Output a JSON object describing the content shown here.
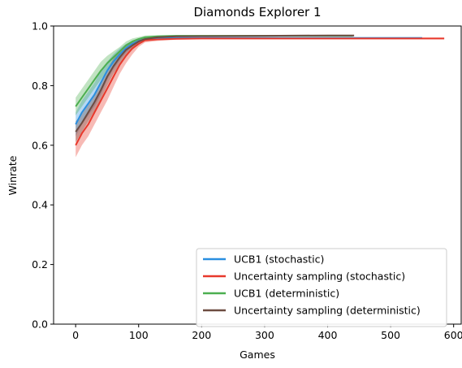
{
  "chart_data": {
    "type": "line",
    "title": "Diamonds Explorer 1",
    "xlabel": "Games",
    "ylabel": "Winrate",
    "xlim": [
      -35,
      612
    ],
    "ylim": [
      0.0,
      1.0
    ],
    "xticks": [
      "0",
      "100",
      "200",
      "300",
      "400",
      "500",
      "600"
    ],
    "xtick_values": [
      0,
      100,
      200,
      300,
      400,
      500,
      600
    ],
    "yticks": [
      "0.0",
      "0.2",
      "0.4",
      "0.6",
      "0.8",
      "1.0"
    ],
    "ytick_values": [
      0.0,
      0.2,
      0.4,
      0.6,
      0.8,
      1.0
    ],
    "grid": false,
    "legend_position": "lower-right",
    "series": [
      {
        "name": "UCB1 (stochastic)",
        "color": "#2a8fe0",
        "x": [
          0,
          10,
          20,
          30,
          40,
          50,
          60,
          70,
          80,
          90,
          100,
          110,
          130,
          160,
          200,
          300,
          400,
          500,
          550
        ],
        "y": [
          0.67,
          0.71,
          0.74,
          0.77,
          0.81,
          0.85,
          0.88,
          0.905,
          0.925,
          0.94,
          0.95,
          0.955,
          0.958,
          0.96,
          0.96,
          0.96,
          0.96,
          0.96,
          0.96
        ],
        "lower": [
          0.63,
          0.67,
          0.7,
          0.73,
          0.77,
          0.82,
          0.855,
          0.885,
          0.91,
          0.93,
          0.943,
          0.95,
          0.955,
          0.958,
          0.958,
          0.958,
          0.958,
          0.958,
          0.958
        ],
        "upper": [
          0.71,
          0.75,
          0.78,
          0.81,
          0.85,
          0.88,
          0.905,
          0.925,
          0.94,
          0.95,
          0.957,
          0.96,
          0.962,
          0.963,
          0.963,
          0.963,
          0.963,
          0.963,
          0.963
        ]
      },
      {
        "name": "Uncertainty sampling (stochastic)",
        "color": "#e8392c",
        "x": [
          0,
          10,
          20,
          30,
          40,
          50,
          60,
          70,
          80,
          90,
          100,
          110,
          130,
          160,
          200,
          300,
          400,
          500,
          585
        ],
        "y": [
          0.6,
          0.64,
          0.67,
          0.71,
          0.75,
          0.79,
          0.83,
          0.87,
          0.9,
          0.925,
          0.94,
          0.952,
          0.955,
          0.957,
          0.958,
          0.958,
          0.958,
          0.958,
          0.958
        ],
        "lower": [
          0.56,
          0.6,
          0.63,
          0.67,
          0.71,
          0.75,
          0.795,
          0.84,
          0.875,
          0.905,
          0.93,
          0.945,
          0.95,
          0.954,
          0.955,
          0.955,
          0.955,
          0.955,
          0.955
        ],
        "upper": [
          0.64,
          0.68,
          0.71,
          0.75,
          0.79,
          0.83,
          0.865,
          0.895,
          0.92,
          0.94,
          0.952,
          0.958,
          0.96,
          0.961,
          0.961,
          0.961,
          0.961,
          0.961,
          0.961
        ]
      },
      {
        "name": "UCB1 (deterministic)",
        "color": "#4caf50",
        "x": [
          0,
          10,
          20,
          30,
          40,
          50,
          60,
          70,
          80,
          90,
          100,
          110,
          130,
          160,
          200,
          300,
          400,
          440
        ],
        "y": [
          0.73,
          0.76,
          0.79,
          0.82,
          0.85,
          0.875,
          0.895,
          0.915,
          0.935,
          0.948,
          0.956,
          0.962,
          0.965,
          0.967,
          0.967,
          0.967,
          0.967,
          0.967
        ],
        "lower": [
          0.7,
          0.73,
          0.76,
          0.79,
          0.82,
          0.85,
          0.875,
          0.9,
          0.92,
          0.938,
          0.95,
          0.957,
          0.962,
          0.965,
          0.965,
          0.965,
          0.965,
          0.965
        ],
        "upper": [
          0.76,
          0.79,
          0.82,
          0.85,
          0.88,
          0.9,
          0.915,
          0.93,
          0.948,
          0.958,
          0.963,
          0.968,
          0.969,
          0.97,
          0.97,
          0.97,
          0.97,
          0.97
        ]
      },
      {
        "name": "Uncertainty sampling (deterministic)",
        "color": "#6d4c41",
        "x": [
          0,
          10,
          20,
          30,
          40,
          50,
          60,
          70,
          80,
          90,
          100,
          110,
          130,
          160,
          200,
          300,
          400,
          442
        ],
        "y": [
          0.645,
          0.675,
          0.71,
          0.745,
          0.785,
          0.83,
          0.865,
          0.895,
          0.92,
          0.935,
          0.948,
          0.956,
          0.962,
          0.965,
          0.966,
          0.967,
          0.968,
          0.968
        ],
        "lower": [
          0.61,
          0.645,
          0.68,
          0.715,
          0.755,
          0.8,
          0.84,
          0.87,
          0.9,
          0.92,
          0.938,
          0.95,
          0.958,
          0.962,
          0.963,
          0.964,
          0.965,
          0.965
        ],
        "upper": [
          0.68,
          0.705,
          0.74,
          0.775,
          0.815,
          0.855,
          0.89,
          0.915,
          0.935,
          0.948,
          0.957,
          0.962,
          0.966,
          0.968,
          0.969,
          0.97,
          0.971,
          0.971
        ]
      }
    ]
  }
}
